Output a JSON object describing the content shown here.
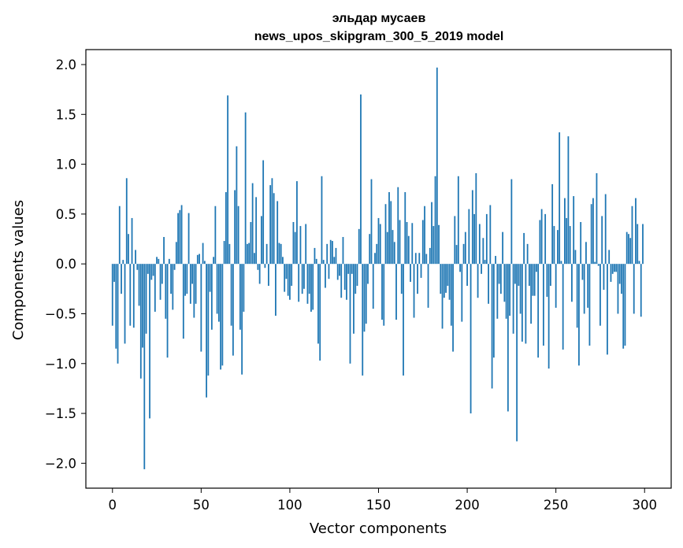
{
  "chart_data": {
    "type": "bar",
    "title": "эльдар мусаев",
    "subtitle": "news_upos_skipgram_300_5_2019 model",
    "xlabel": "Vector components",
    "ylabel": "Components values",
    "xlim": [
      -15,
      315
    ],
    "ylim": [
      -2.25,
      2.15
    ],
    "xticks": [
      0,
      50,
      100,
      150,
      200,
      250,
      300
    ],
    "yticks": [
      -2.0,
      -1.5,
      -1.0,
      -0.5,
      0.0,
      0.5,
      1.0,
      1.5,
      2.0
    ],
    "ytick_labels": [
      "−2.0",
      "−1.5",
      "−1.0",
      "−0.5",
      "0.0",
      "0.5",
      "1.0",
      "1.5",
      "2.0"
    ],
    "grid": false,
    "bar_color": "#1f77b4",
    "values": [
      -0.62,
      -0.18,
      -0.85,
      -1.0,
      0.58,
      -0.3,
      0.04,
      -0.8,
      0.86,
      0.3,
      -0.62,
      0.46,
      -0.64,
      0.14,
      -0.06,
      -0.42,
      -1.15,
      -0.84,
      -2.06,
      -0.7,
      -0.1,
      -1.55,
      -0.16,
      -0.12,
      -0.48,
      0.07,
      0.05,
      -0.36,
      -0.2,
      0.27,
      -0.55,
      -0.94,
      0.05,
      -0.3,
      -0.46,
      -0.06,
      0.22,
      0.51,
      0.54,
      0.59,
      -0.75,
      -0.32,
      -0.3,
      0.51,
      -0.4,
      -0.2,
      -0.54,
      -0.4,
      0.09,
      0.1,
      -0.88,
      0.21,
      0.03,
      -1.34,
      -1.12,
      -0.28,
      -0.66,
      0.07,
      0.58,
      -0.5,
      -0.58,
      -1.06,
      -1.02,
      0.23,
      0.72,
      1.69,
      0.2,
      -0.62,
      -0.92,
      0.74,
      1.18,
      0.58,
      -0.66,
      -1.11,
      -0.48,
      1.52,
      0.2,
      0.21,
      0.42,
      0.81,
      0.11,
      0.67,
      -0.06,
      -0.2,
      0.48,
      1.04,
      -0.04,
      0.2,
      -0.22,
      0.79,
      0.86,
      0.71,
      -0.52,
      0.63,
      0.21,
      0.2,
      0.07,
      -0.28,
      -0.15,
      -0.32,
      -0.36,
      -0.22,
      0.42,
      0.32,
      0.83,
      -0.38,
      0.38,
      -0.3,
      -0.25,
      0.4,
      -0.4,
      -0.3,
      -0.48,
      -0.46,
      0.16,
      0.05,
      -0.8,
      -0.97,
      0.88,
      0.04,
      -0.24,
      0.2,
      -0.15,
      0.24,
      0.23,
      0.07,
      0.16,
      -0.16,
      -0.12,
      -0.34,
      0.27,
      -0.26,
      -0.36,
      -0.1,
      -1.0,
      -0.1,
      -0.7,
      -0.3,
      -0.22,
      0.35,
      1.7,
      -1.12,
      -0.68,
      -0.6,
      -0.2,
      0.3,
      0.85,
      -0.45,
      0.11,
      0.2,
      0.46,
      0.4,
      -0.56,
      -0.62,
      0.6,
      0.32,
      0.72,
      0.63,
      0.34,
      0.22,
      -0.56,
      0.77,
      0.44,
      -0.3,
      -1.12,
      0.72,
      0.42,
      0.28,
      -0.18,
      0.41,
      -0.54,
      0.11,
      -0.3,
      0.11,
      -0.14,
      0.44,
      0.58,
      0.1,
      -0.44,
      0.16,
      0.62,
      0.38,
      0.88,
      1.97,
      0.39,
      -0.3,
      -0.65,
      -0.34,
      -0.29,
      -0.22,
      -0.36,
      -0.62,
      -0.88,
      0.48,
      0.19,
      0.88,
      -0.08,
      -0.58,
      0.2,
      0.32,
      -0.22,
      0.55,
      -1.5,
      0.74,
      0.5,
      0.91,
      -0.34,
      0.4,
      -0.1,
      0.26,
      0.04,
      0.5,
      -0.4,
      0.59,
      -1.25,
      -0.94,
      0.08,
      -0.55,
      -0.2,
      -0.3,
      0.32,
      -0.38,
      -0.55,
      -1.48,
      -0.52,
      0.85,
      -0.7,
      -0.2,
      -1.78,
      -0.22,
      -0.5,
      -0.78,
      0.31,
      -0.8,
      0.2,
      -0.22,
      -0.6,
      -0.32,
      -0.32,
      -0.08,
      -0.94,
      0.44,
      0.55,
      -0.82,
      0.5,
      -0.33,
      -1.05,
      -0.22,
      0.8,
      0.38,
      -0.44,
      0.34,
      1.32,
      0.03,
      -0.86,
      0.66,
      0.46,
      1.28,
      0.38,
      -0.38,
      0.68,
      0.14,
      -0.64,
      -1.02,
      0.42,
      -0.16,
      -0.5,
      0.22,
      -0.44,
      -0.82,
      0.6,
      0.66,
      0.02,
      0.91,
      -0.02,
      -0.62,
      0.48,
      -0.26,
      0.7,
      -0.91,
      0.14,
      -0.18,
      -0.1,
      -0.08,
      -0.08,
      -0.5,
      -0.2,
      -0.3,
      -0.85,
      -0.82,
      0.32,
      0.3,
      0.26,
      0.58,
      -0.5,
      0.66,
      0.4,
      0.03,
      -0.53,
      0.4
    ]
  }
}
